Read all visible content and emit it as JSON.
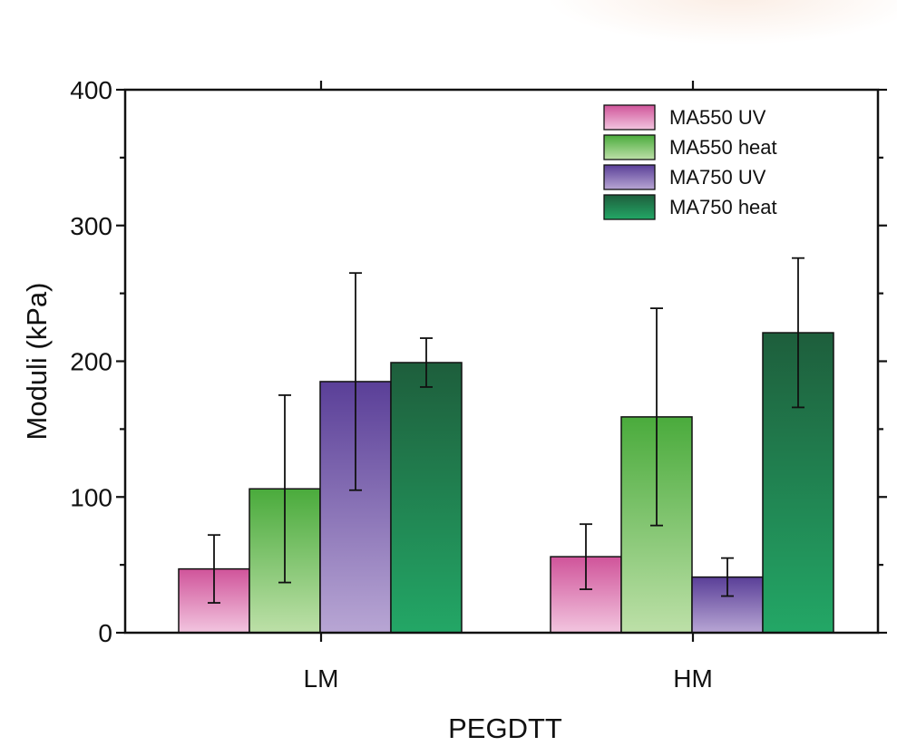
{
  "chart_data": {
    "type": "bar",
    "xlabel": "PEGDTT",
    "ylabel": "Moduli (kPa)",
    "ylim": [
      0,
      400
    ],
    "yticks": [
      0,
      100,
      200,
      300,
      400
    ],
    "categories": [
      "LM",
      "HM"
    ],
    "legend_position": "top-right",
    "grid": false,
    "series": [
      {
        "name": "MA550 UV",
        "values": [
          47,
          56
        ],
        "errors": [
          25,
          24
        ],
        "color_top": "#d0549a",
        "color_bottom": "#f2c5df"
      },
      {
        "name": "MA550 heat",
        "values": [
          106,
          159
        ],
        "errors": [
          69,
          80
        ],
        "color_top": "#4aab3c",
        "color_bottom": "#bde0a8"
      },
      {
        "name": "MA750 UV",
        "values": [
          185,
          41
        ],
        "errors": [
          80,
          14
        ],
        "color_top": "#5a3f98",
        "color_bottom": "#b8a6d4"
      },
      {
        "name": "MA750 heat",
        "values": [
          199,
          221
        ],
        "errors": [
          18,
          55
        ],
        "color_top": "#1e5e3c",
        "color_bottom": "#23a766"
      }
    ]
  }
}
